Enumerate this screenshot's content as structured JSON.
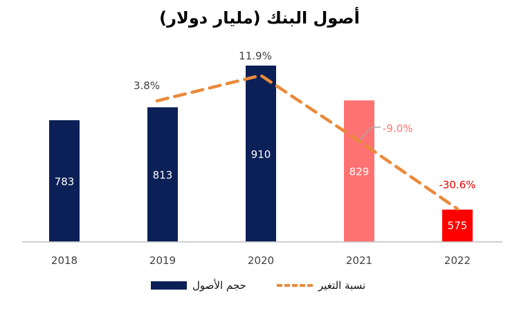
{
  "title": "أصول البنك (مليار دولار)",
  "legend": {
    "bars": "حجم الأصول",
    "line": "نسبة التغير"
  },
  "colors": {
    "bar_default": "#0b2057",
    "bar_2021": "#ff7272",
    "bar_2022": "#ff0000",
    "line": "#e98a3b",
    "label_negative": "#e60000",
    "label_pink": "#ff7272",
    "axis": "#bfbfbf"
  },
  "chart_data": {
    "type": "bar",
    "title": "أصول البنك (مليار دولار)",
    "categories": [
      "2018",
      "2019",
      "2020",
      "2021",
      "2022"
    ],
    "series": [
      {
        "name": "حجم الأصول",
        "type": "bar",
        "values": [
          783,
          813,
          910,
          829,
          575
        ],
        "labels": [
          "783",
          "813",
          "910",
          "829",
          "575"
        ]
      },
      {
        "name": "نسبة التغير",
        "type": "line",
        "style": "dashed",
        "values": [
          null,
          3.8,
          11.9,
          -9.0,
          -30.6
        ],
        "labels": [
          "",
          "3.8%",
          "11.9%",
          "-9.0%",
          "-30.6%"
        ]
      }
    ],
    "ylim": [
      500,
      950
    ],
    "grid": false,
    "legend_position": "bottom"
  }
}
